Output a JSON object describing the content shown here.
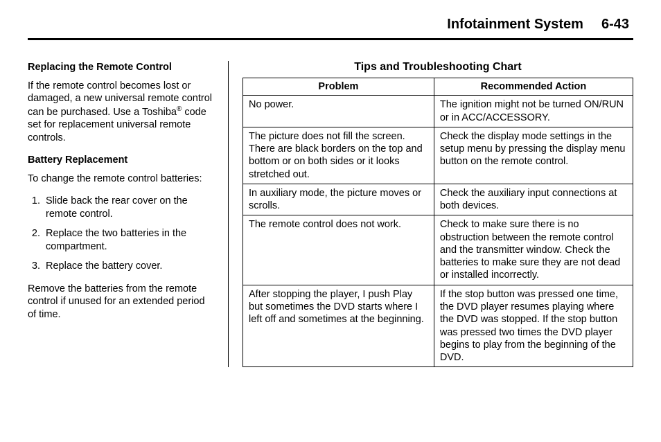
{
  "header": {
    "title": "Infotainment System",
    "page": "6-43"
  },
  "left": {
    "h1": "Replacing the Remote Control",
    "p1a": "If the remote control becomes lost or damaged, a new universal remote control can be purchased. Use a Toshiba",
    "p1_sup": "®",
    "p1b": " code set for replacement universal remote controls.",
    "h2": "Battery Replacement",
    "p2": "To change the remote control batteries:",
    "steps": [
      "Slide back the rear cover on the remote control.",
      "Replace the two batteries in the compartment.",
      "Replace the battery cover."
    ],
    "p3": "Remove the batteries from the remote control if unused for an extended period of time."
  },
  "right": {
    "chart_title": "Tips and Troubleshooting Chart",
    "columns": [
      "Problem",
      "Recommended Action"
    ],
    "rows": [
      [
        "No power.",
        "The ignition might not be turned ON/RUN or in ACC/ACCESSORY."
      ],
      [
        "The picture does not fill the screen. There are black borders on the top and bottom or on both sides or it looks stretched out.",
        "Check the display mode settings in the setup menu by pressing the display menu button on the remote control."
      ],
      [
        "In auxiliary mode, the picture moves or scrolls.",
        "Check the auxiliary input connections at both devices."
      ],
      [
        "The remote control does not work.",
        "Check to make sure there is no obstruction between the remote control and the transmitter window. Check the batteries to make sure they are not dead or installed incorrectly."
      ],
      [
        "After stopping the player, I push Play but sometimes the DVD starts where I left off and sometimes at the beginning.",
        "If the stop button was pressed one time, the DVD player resumes playing where the DVD was stopped. If the stop button was pressed two times the DVD player begins to play from the beginning of the DVD."
      ]
    ]
  }
}
